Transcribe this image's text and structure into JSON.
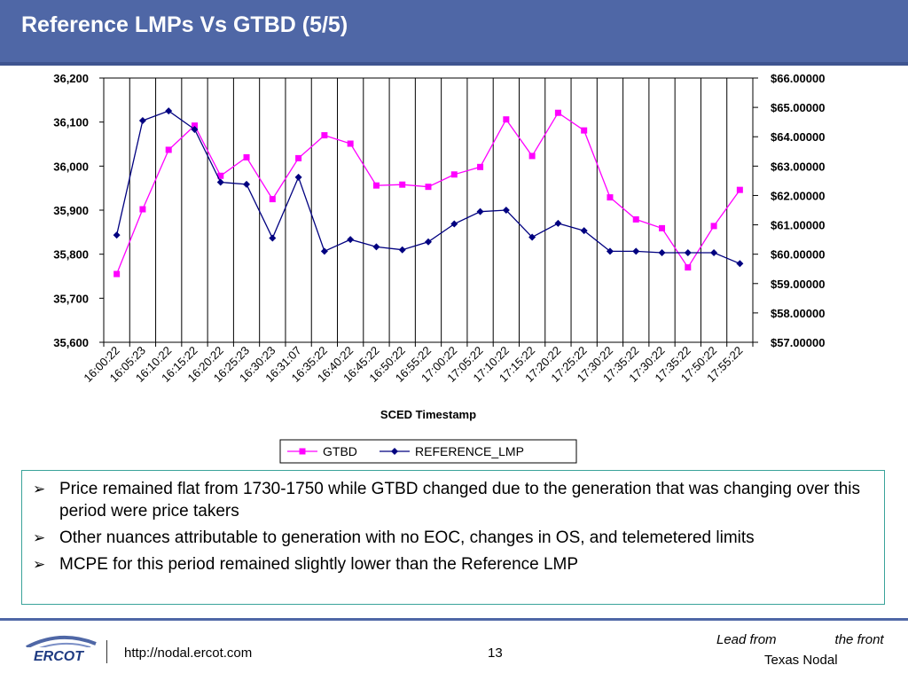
{
  "slide": {
    "title": "Reference LMPs Vs GTBD (5/5)",
    "page_number": "13",
    "url": "http://nodal.ercot.com",
    "logo_text": "ERCOT",
    "tagline_left": "Lead from",
    "tagline_right": "the front",
    "tagline_line2": "Texas Nodal",
    "colors": {
      "title_bar": "#4f67a6",
      "gtbd": "#ff00ff",
      "reference_lmp": "#000080",
      "box_border": "#3aa39a"
    }
  },
  "bullets": [
    "Price remained flat from 1730-1750 while GTBD changed due to the generation that was changing over this period were price takers",
    "Other nuances attributable to generation with no EOC, changes in OS, and telemetered limits",
    "MCPE for this period remained slightly lower than the Reference LMP"
  ],
  "chart_data": {
    "type": "line",
    "title": "",
    "xlabel": "SCED Timestamp",
    "ylabel": "",
    "x_tick_labels": [
      "16:00:22",
      "16:05:23",
      "16:10:22",
      "16:15:22",
      "16:20:22",
      "16:25:23",
      "16:30:23",
      "16:31:07",
      "16:35:22",
      "16:40:22",
      "16:45:22",
      "16:50:22",
      "16:55:22",
      "17:00:22",
      "17:05:22",
      "17:10:22",
      "17:15:22",
      "17:20:22",
      "17:25:22",
      "17:30:22",
      "17:35:22",
      "17:30:22",
      "17:35:22",
      "17:50:22",
      "17:55:22"
    ],
    "left_axis": {
      "ylim": [
        35600,
        36200
      ],
      "ticks": [
        35600,
        35700,
        35800,
        35900,
        36000,
        36100,
        36200
      ],
      "tick_labels": [
        "35,600",
        "35,700",
        "35,800",
        "35,900",
        "36,000",
        "36,100",
        "36,200"
      ]
    },
    "right_axis": {
      "ylim": [
        57,
        66
      ],
      "ticks": [
        57,
        58,
        59,
        60,
        61,
        62,
        63,
        64,
        65,
        66
      ],
      "tick_labels": [
        "$57.00000",
        "$58.00000",
        "$59.00000",
        "$60.00000",
        "$61.00000",
        "$62.00000",
        "$63.00000",
        "$64.00000",
        "$65.00000",
        "$66.00000"
      ]
    },
    "grid": "vertical",
    "legend": "bottom",
    "series": [
      {
        "name": "GTBD",
        "axis": "left",
        "marker": "square",
        "values": [
          35755,
          35902,
          36037,
          36092,
          35978,
          36020,
          35925,
          36018,
          36070,
          36051,
          35956,
          35958,
          35953,
          35981,
          35998,
          36106,
          36023,
          36121,
          36081,
          35929,
          35879,
          35859,
          35770,
          35864,
          35946
        ]
      },
      {
        "name": "REFERENCE_LMP",
        "axis": "right",
        "marker": "diamond",
        "values": [
          60.65,
          64.55,
          64.88,
          64.25,
          62.45,
          62.38,
          60.55,
          62.62,
          60.1,
          60.5,
          60.25,
          60.15,
          60.42,
          61.03,
          61.45,
          61.5,
          60.58,
          61.05,
          60.8,
          60.1,
          60.1,
          60.05,
          60.05,
          60.05,
          59.68
        ]
      }
    ]
  }
}
